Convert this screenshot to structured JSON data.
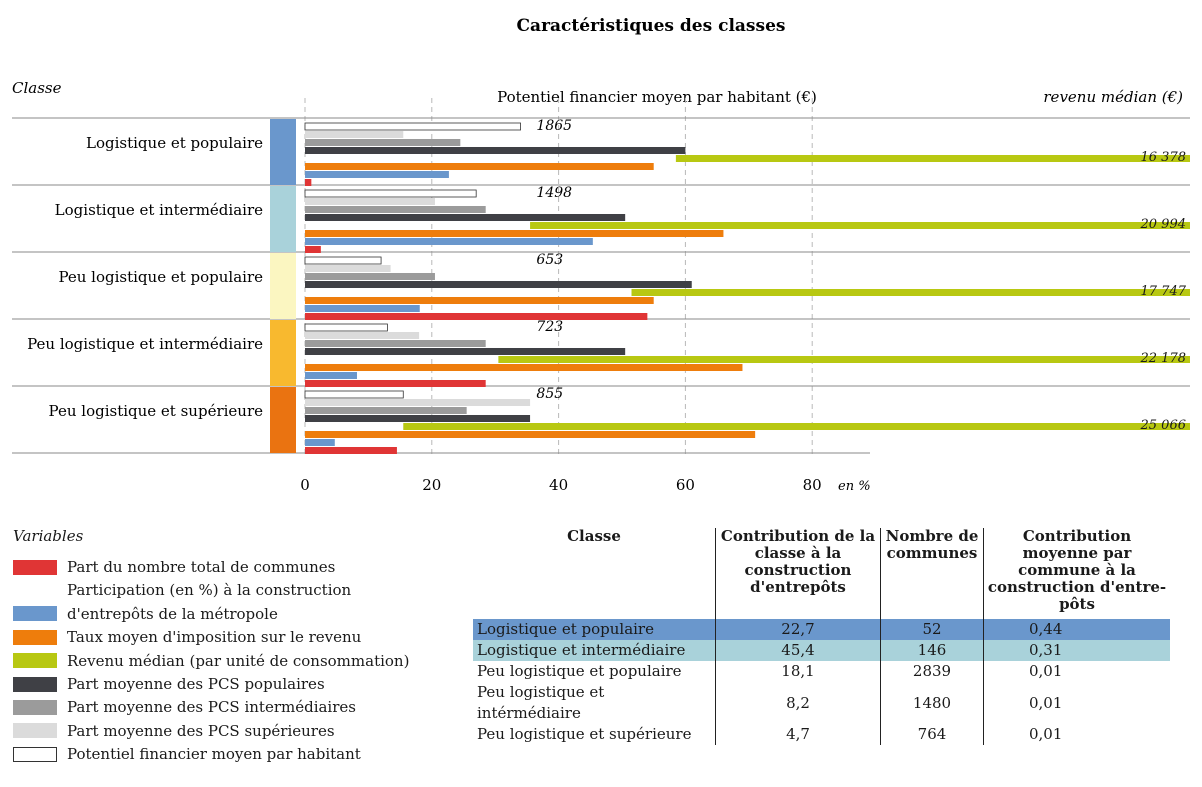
{
  "chart_data": {
    "type": "bar",
    "title": "Caractéristiques des classes",
    "class_axis_label": "Classe",
    "potential_header": "Potentiel financier moyen par habitant (€)",
    "income_header": "revenu médian (€)",
    "x_unit_label": "en %",
    "xlim": [
      0,
      90
    ],
    "xticks": [
      0,
      20,
      40,
      60,
      80
    ],
    "grid": true,
    "categories": [
      "Logistique et populaire",
      "Logistique et intermédiaire",
      "Peu logistique et populaire",
      "Peu logistique et intermédiaire",
      "Peu logistique et supérieure"
    ],
    "class_colors": [
      "#6a97cc",
      "#a9d2da",
      "#fbf6c1",
      "#f8b92f",
      "#ea7311"
    ],
    "series": [
      {
        "name": "Potentiel financier moyen par habitant",
        "color": "#ffffff",
        "values": [
          34,
          27,
          12,
          13,
          15.5
        ]
      },
      {
        "name": "Part moyenne des PCS supérieures",
        "color": "#dbdbdb",
        "values": [
          15.5,
          20.5,
          13.5,
          18,
          35.5
        ]
      },
      {
        "name": "Part moyenne des PCS intermédiaires",
        "color": "#9b9b9b",
        "values": [
          24.5,
          28.5,
          20.5,
          28.5,
          25.5
        ]
      },
      {
        "name": "Part moyenne des PCS populaires",
        "color": "#3f4045",
        "values": [
          60,
          50.5,
          61,
          50.5,
          35.5
        ]
      },
      {
        "name": "Revenu médian (par unité de consommation)",
        "color": "#b8c812",
        "values": [
          58.5,
          35.5,
          51.5,
          30.5,
          15.5
        ]
      },
      {
        "name": "Taux moyen d'imposition sur le revenu",
        "color": "#ee7d0c",
        "values": [
          55,
          66,
          55,
          69,
          71
        ]
      },
      {
        "name": "Participation (en %) à la construction d'entrepôts de la métropole",
        "color": "#6a97cc",
        "values": [
          22.7,
          45.4,
          18.1,
          8.2,
          4.7
        ]
      },
      {
        "name": "Part du nombre total de communes",
        "color": "#e03535",
        "values": [
          1,
          2.5,
          54,
          28.5,
          14.5
        ]
      }
    ],
    "potential_labels": [
      "1865",
      "1498",
      "653",
      "723",
      "855"
    ],
    "income_labels": [
      "16 378",
      "20 994",
      "17 747",
      "22 178",
      "25 066"
    ]
  },
  "legend": {
    "title": "Variables",
    "items": [
      {
        "label": "Part du nombre total de communes",
        "color": "#e03535"
      },
      {
        "label": "Participation (en %) à la construction",
        "color": null
      },
      {
        "label": "d'entrepôts de la métropole",
        "color": "#6a97cc"
      },
      {
        "label": "Taux moyen d'imposition sur le revenu",
        "color": "#ee7d0c"
      },
      {
        "label": "Revenu médian (par unité de consommation)",
        "color": "#b8c812"
      },
      {
        "label": "Part moyenne des PCS populaires",
        "color": "#3f4045"
      },
      {
        "label": "Part moyenne des PCS intermédiaires",
        "color": "#9b9b9b"
      },
      {
        "label": "Part moyenne des PCS supérieures",
        "color": "#dbdbdb"
      },
      {
        "label": "Potentiel financier moyen par habitant",
        "color": "#ffffff"
      }
    ]
  },
  "table": {
    "headers": [
      "Classe",
      "Contribution de la classe à la construction d'entrepôts",
      "Nombre de communes",
      "Contribution moyenne par commune à la construction d'entre-pôts"
    ],
    "rows": [
      {
        "cells": [
          "Logistique et populaire",
          "22,7",
          "52",
          "0,44"
        ],
        "highlight": "#6a97cc"
      },
      {
        "cells": [
          "Logistique et intermédiaire",
          "45,4",
          "146",
          "0,31"
        ],
        "highlight": "#a9d2da"
      },
      {
        "cells": [
          "Peu logistique et populaire",
          "18,1",
          "2839",
          "0,01"
        ],
        "highlight": null
      },
      {
        "cells": [
          "Peu logistique et intérmédiaire",
          "8,2",
          "1480",
          "0,01"
        ],
        "highlight": null
      },
      {
        "cells": [
          "Peu logistique et supérieure",
          "4,7",
          "764",
          "0,01"
        ],
        "highlight": null
      }
    ]
  }
}
